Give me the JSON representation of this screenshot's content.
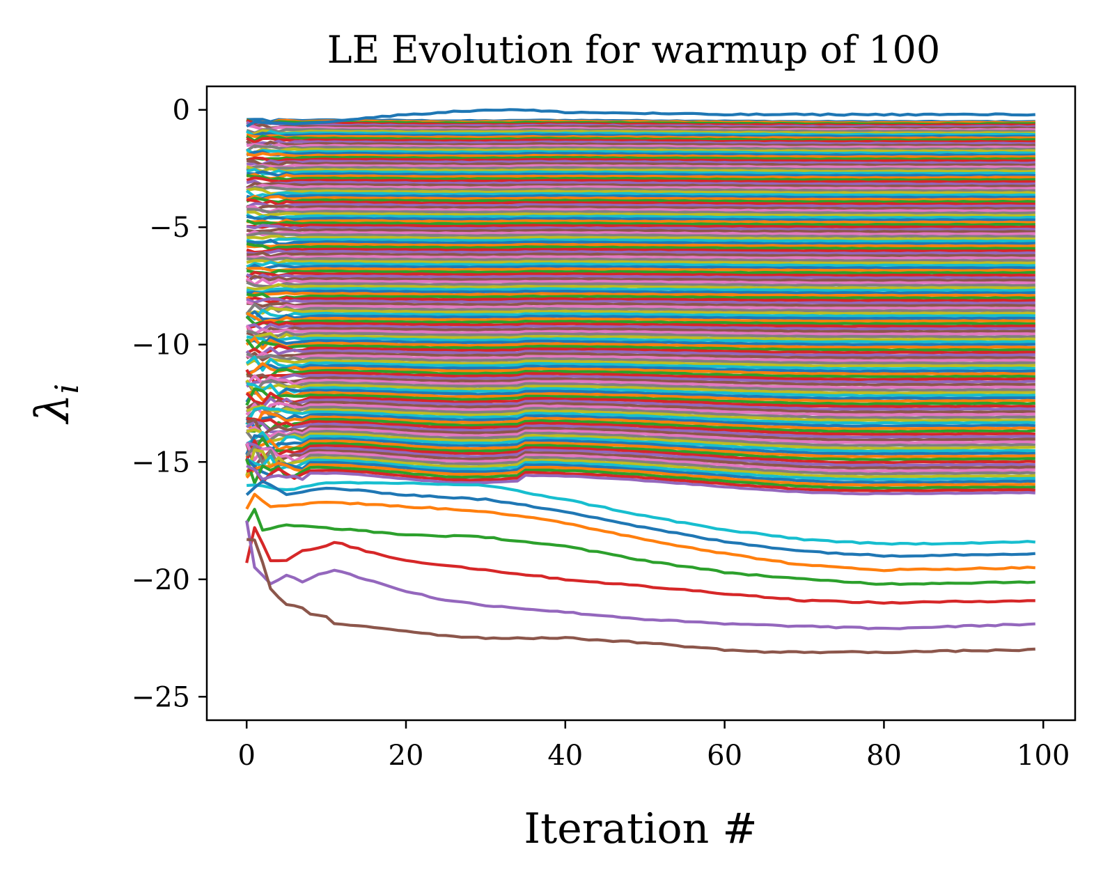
{
  "chart_data": {
    "type": "line",
    "title": "LE Evolution for warmup of 100",
    "xlabel": "Iteration #",
    "ylabel": "λi",
    "ylabel_base": "λ",
    "ylabel_sub": "i",
    "xlim": [
      -5,
      104
    ],
    "ylim": [
      -26,
      1
    ],
    "xticks": [
      0,
      20,
      40,
      60,
      80,
      100
    ],
    "xtick_labels": [
      "0",
      "20",
      "40",
      "60",
      "80",
      "100"
    ],
    "yticks": [
      0,
      -5,
      -10,
      -15,
      -20,
      -25
    ],
    "ytick_labels": [
      "0",
      "−5",
      "−10",
      "−15",
      "−20",
      "−25"
    ],
    "grid": false,
    "legend": "none",
    "palette": [
      "#1f77b4",
      "#ff7f0e",
      "#2ca02c",
      "#d62728",
      "#9467bd",
      "#8c564b",
      "#e377c2",
      "#7f7f7f",
      "#bcbd22",
      "#17becf"
    ],
    "x_range": [
      0,
      99
    ],
    "series_count": 155,
    "series_note": "One line per Lyapunov exponent; final values spaced densely from -0.2 down to -23.1. Lower series show early dip near x=0-10 and a gradual decrease to a minimum around x=65-80.",
    "highlighted_series": [
      {
        "name": "λ1",
        "color": "#1f77b4",
        "points": [
          [
            0,
            -0.7
          ],
          [
            1,
            -0.5
          ],
          [
            5,
            -0.6
          ],
          [
            10,
            -0.5
          ],
          [
            20,
            -0.2
          ],
          [
            30,
            0.0
          ],
          [
            34,
            0.0
          ],
          [
            40,
            -0.1
          ],
          [
            50,
            -0.15
          ],
          [
            60,
            -0.2
          ],
          [
            80,
            -0.2
          ],
          [
            99,
            -0.2
          ]
        ]
      },
      {
        "name": "λ-10",
        "color": "#17becf",
        "points": [
          [
            0,
            -16.0
          ],
          [
            2,
            -16.0
          ],
          [
            5,
            -16.2
          ],
          [
            10,
            -15.9
          ],
          [
            20,
            -15.9
          ],
          [
            30,
            -16.0
          ],
          [
            40,
            -16.6
          ],
          [
            50,
            -17.3
          ],
          [
            60,
            -17.9
          ],
          [
            70,
            -18.3
          ],
          [
            80,
            -18.5
          ],
          [
            99,
            -18.4
          ]
        ]
      },
      {
        "name": "λ-9",
        "color": "#1f77b4",
        "points": [
          [
            0,
            -16.4
          ],
          [
            2,
            -15.8
          ],
          [
            5,
            -16.4
          ],
          [
            10,
            -16.1
          ],
          [
            20,
            -16.4
          ],
          [
            30,
            -16.6
          ],
          [
            40,
            -17.1
          ],
          [
            50,
            -17.8
          ],
          [
            60,
            -18.4
          ],
          [
            70,
            -18.8
          ],
          [
            80,
            -19.0
          ],
          [
            99,
            -18.9
          ]
        ]
      },
      {
        "name": "λ-8",
        "color": "#ff7f0e",
        "points": [
          [
            0,
            -17.0
          ],
          [
            1,
            -16.4
          ],
          [
            3,
            -16.9
          ],
          [
            10,
            -16.7
          ],
          [
            20,
            -16.9
          ],
          [
            30,
            -17.1
          ],
          [
            40,
            -17.6
          ],
          [
            50,
            -18.3
          ],
          [
            60,
            -18.9
          ],
          [
            70,
            -19.4
          ],
          [
            80,
            -19.6
          ],
          [
            99,
            -19.5
          ]
        ]
      },
      {
        "name": "λ-7",
        "color": "#2ca02c",
        "points": [
          [
            0,
            -17.6
          ],
          [
            1,
            -17.0
          ],
          [
            2,
            -17.9
          ],
          [
            5,
            -17.7
          ],
          [
            10,
            -17.8
          ],
          [
            20,
            -18.1
          ],
          [
            30,
            -18.2
          ],
          [
            40,
            -18.6
          ],
          [
            50,
            -19.2
          ],
          [
            60,
            -19.7
          ],
          [
            70,
            -20.0
          ],
          [
            80,
            -20.2
          ],
          [
            99,
            -20.1
          ]
        ]
      },
      {
        "name": "λ-6",
        "color": "#d62728",
        "points": [
          [
            0,
            -19.3
          ],
          [
            1,
            -17.8
          ],
          [
            3,
            -19.2
          ],
          [
            5,
            -19.2
          ],
          [
            7,
            -18.8
          ],
          [
            10,
            -18.6
          ],
          [
            11,
            -18.4
          ],
          [
            15,
            -18.8
          ],
          [
            20,
            -19.2
          ],
          [
            30,
            -19.6
          ],
          [
            40,
            -20.0
          ],
          [
            50,
            -20.3
          ],
          [
            60,
            -20.6
          ],
          [
            70,
            -20.9
          ],
          [
            80,
            -21.0
          ],
          [
            99,
            -20.9
          ]
        ]
      },
      {
        "name": "λ-5",
        "color": "#9467bd",
        "points": [
          [
            0,
            -17.5
          ],
          [
            1,
            -19.5
          ],
          [
            3,
            -20.2
          ],
          [
            5,
            -19.8
          ],
          [
            7,
            -20.1
          ],
          [
            9,
            -19.8
          ],
          [
            11,
            -19.6
          ],
          [
            13,
            -19.8
          ],
          [
            15,
            -20.0
          ],
          [
            20,
            -20.5
          ],
          [
            25,
            -20.9
          ],
          [
            30,
            -21.1
          ],
          [
            40,
            -21.4
          ],
          [
            50,
            -21.7
          ],
          [
            60,
            -21.9
          ],
          [
            70,
            -22.0
          ],
          [
            80,
            -22.1
          ],
          [
            99,
            -21.9
          ]
        ]
      },
      {
        "name": "λ-4",
        "color": "#8c564b",
        "points": [
          [
            0,
            -18.3
          ],
          [
            1,
            -18.3
          ],
          [
            2,
            -19.3
          ],
          [
            3,
            -20.4
          ],
          [
            5,
            -21.1
          ],
          [
            7,
            -21.2
          ],
          [
            8,
            -21.5
          ],
          [
            10,
            -21.6
          ],
          [
            11,
            -21.9
          ],
          [
            15,
            -22.0
          ],
          [
            20,
            -22.2
          ],
          [
            25,
            -22.4
          ],
          [
            30,
            -22.5
          ],
          [
            40,
            -22.5
          ],
          [
            50,
            -22.7
          ],
          [
            60,
            -23.0
          ],
          [
            65,
            -23.1
          ],
          [
            80,
            -23.1
          ],
          [
            99,
            -23.0
          ]
        ]
      }
    ]
  }
}
